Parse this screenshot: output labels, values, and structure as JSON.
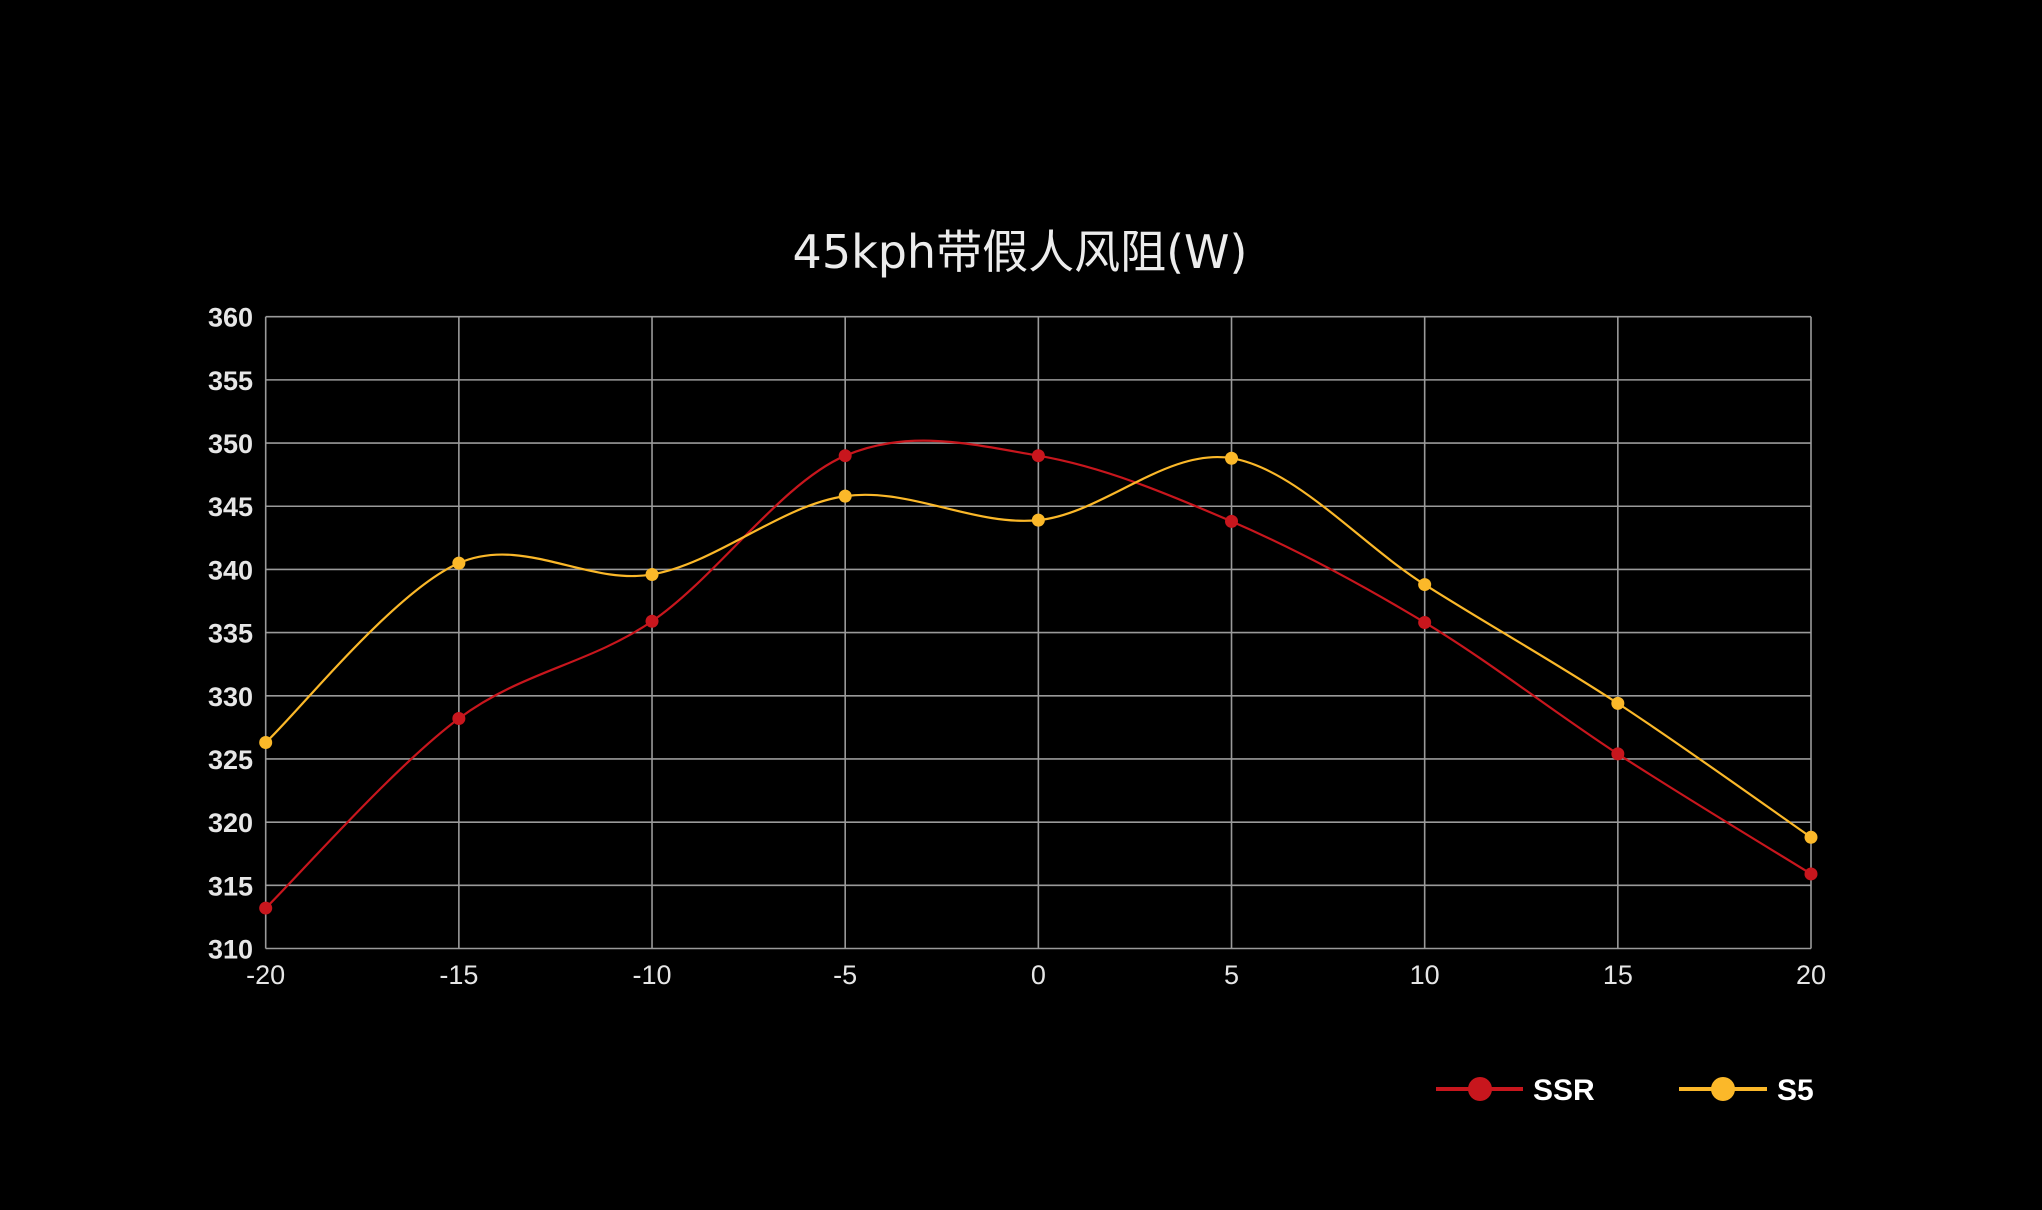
{
  "chart_data": {
    "type": "line",
    "title": "45kph带假人风阻(W)",
    "xlabel": "",
    "ylabel": "",
    "x": [
      -20,
      -15,
      -10,
      -5,
      0,
      5,
      10,
      15,
      20
    ],
    "xticks": [
      "-20",
      "-15",
      "-10",
      "-5",
      "0",
      "5",
      "10",
      "15",
      "20"
    ],
    "yticks": [
      "310",
      "315",
      "320",
      "325",
      "330",
      "335",
      "340",
      "345",
      "350",
      "355",
      "360"
    ],
    "xlim": [
      -20,
      20
    ],
    "ylim": [
      310,
      360
    ],
    "grid": true,
    "smooth": true,
    "legend_position": "bottom-right",
    "series": [
      {
        "name": "SSR",
        "color": "#c8161d",
        "values": [
          313.2,
          328.2,
          335.9,
          349.0,
          349.0,
          343.8,
          335.8,
          325.4,
          315.9
        ]
      },
      {
        "name": "S5",
        "color": "#fbb829",
        "values": [
          326.3,
          340.5,
          339.6,
          345.8,
          343.9,
          348.8,
          338.8,
          329.4,
          318.8
        ]
      }
    ]
  },
  "legend": {
    "items": [
      {
        "label": "SSR",
        "color": "#c8161d"
      },
      {
        "label": "S5",
        "color": "#fbb829"
      }
    ]
  }
}
